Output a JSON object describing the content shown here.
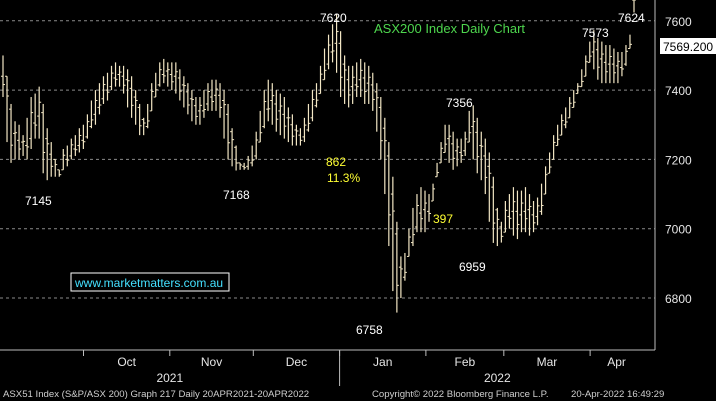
{
  "chart_data": {
    "type": "bar",
    "style": "ohlc",
    "title": "ASX200 Index Daily Chart",
    "ylim": [
      6650,
      7660
    ],
    "yticks": [
      "6800",
      "7000",
      "7200",
      "7400",
      "7600"
    ],
    "ytick_values": [
      6800,
      7000,
      7200,
      7400,
      7600
    ],
    "last_price_label": "7569.200",
    "last_price": 7569.2,
    "month_labels": [
      "Oct",
      "Nov",
      "Dec",
      "Jan",
      "Feb",
      "Mar",
      "Apr"
    ],
    "year_labels": [
      "2021",
      "2022"
    ],
    "x_range": [
      "2021-09-01",
      "2022-04-20"
    ],
    "annotations": {
      "low_7145": "7145",
      "low_7168": "7168",
      "high_7620": "7620",
      "high_7356": "7356",
      "low_6758": "6758",
      "low_6959": "6959",
      "high_7573": "7573",
      "high_7624": "7624",
      "rally_points": "862",
      "rally_percent": "11.3%",
      "rebound_points": "397"
    },
    "watermark": "www.marketmatters.com.au",
    "series": [
      {
        "highs": [
          7500,
          7440,
          7360,
          7310,
          7300,
          7270,
          7320,
          7380,
          7390,
          7410,
          7360,
          7290,
          7250,
          7200,
          7170,
          7230,
          7240,
          7260,
          7270,
          7290,
          7300,
          7330,
          7370,
          7400,
          7420,
          7440,
          7450,
          7470,
          7480,
          7470,
          7470,
          7460,
          7440,
          7400,
          7360,
          7320,
          7360,
          7420,
          7450,
          7480,
          7490,
          7480,
          7480,
          7480,
          7460,
          7440,
          7420,
          7400,
          7380,
          7380,
          7400,
          7420,
          7430,
          7430,
          7420,
          7400,
          7360,
          7290,
          7240,
          7190,
          7190,
          7210,
          7240,
          7280,
          7340,
          7400,
          7430,
          7420,
          7400,
          7390,
          7380,
          7350,
          7330,
          7300,
          7290,
          7320,
          7360,
          7400,
          7420,
          7470,
          7520,
          7560,
          7590,
          7620,
          7570,
          7500,
          7470,
          7470,
          7480,
          7490,
          7480,
          7470,
          7450,
          7420,
          7380,
          7320,
          7250,
          7150,
          7020,
          6920,
          6930,
          7000,
          7060,
          7100,
          7120,
          7110,
          7100,
          7130,
          7190,
          7250,
          7300,
          7300,
          7280,
          7260,
          7260,
          7280,
          7340,
          7356,
          7320,
          7280,
          7260,
          7220,
          7150,
          7060,
          7020,
          7080,
          7100,
          7120,
          7110,
          7110,
          7120,
          7100,
          7080,
          7090,
          7130,
          7180,
          7220,
          7270,
          7300,
          7330,
          7350,
          7380,
          7400,
          7420,
          7460,
          7500,
          7540,
          7573,
          7550,
          7540,
          7530,
          7530,
          7520,
          7510,
          7510,
          7530,
          7560,
          7624
        ],
        "lows": [
          7380,
          7250,
          7190,
          7200,
          7200,
          7210,
          7200,
          7230,
          7260,
          7260,
          7160,
          7140,
          7150,
          7150,
          7150,
          7170,
          7180,
          7200,
          7210,
          7220,
          7230,
          7260,
          7290,
          7300,
          7330,
          7360,
          7370,
          7400,
          7410,
          7410,
          7390,
          7350,
          7320,
          7300,
          7270,
          7270,
          7290,
          7340,
          7380,
          7410,
          7420,
          7410,
          7400,
          7390,
          7370,
          7350,
          7330,
          7310,
          7300,
          7300,
          7320,
          7340,
          7340,
          7340,
          7320,
          7260,
          7200,
          7180,
          7168,
          7170,
          7170,
          7170,
          7180,
          7200,
          7250,
          7290,
          7310,
          7300,
          7280,
          7270,
          7260,
          7250,
          7240,
          7240,
          7240,
          7250,
          7280,
          7310,
          7350,
          7390,
          7430,
          7460,
          7480,
          7450,
          7380,
          7360,
          7350,
          7360,
          7380,
          7380,
          7360,
          7360,
          7340,
          7280,
          7200,
          7100,
          6950,
          6820,
          6758,
          6800,
          6850,
          6920,
          6950,
          6990,
          6990,
          6990,
          7020,
          7080,
          7150,
          7190,
          7220,
          7190,
          7170,
          7180,
          7190,
          7210,
          7250,
          7200,
          7160,
          7140,
          7100,
          7020,
          6959,
          6950,
          6960,
          6990,
          7000,
          6980,
          6970,
          6990,
          6990,
          6980,
          6990,
          7010,
          7040,
          7100,
          7160,
          7200,
          7240,
          7270,
          7290,
          7320,
          7350,
          7390,
          7410,
          7440,
          7480,
          7460,
          7430,
          7420,
          7420,
          7420,
          7420,
          7420,
          7440,
          7470,
          7520
        ]
      }
    ]
  }
}
